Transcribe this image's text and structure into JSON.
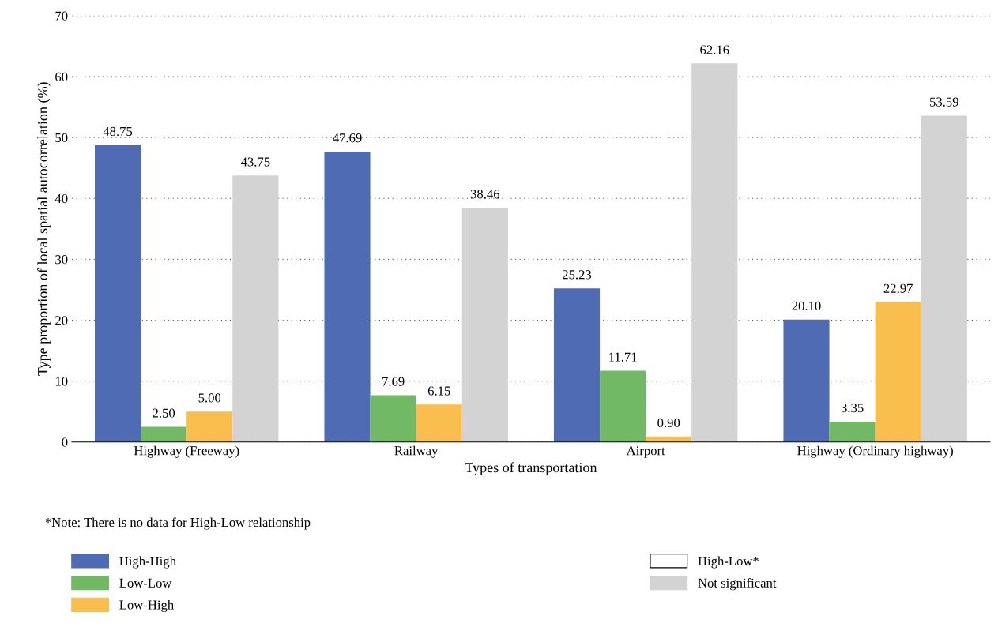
{
  "chart_data": {
    "type": "bar",
    "xlabel": "Types of transportation",
    "ylabel": "Type proportion of local spatial autocorrelation (%)",
    "categories": [
      "Highway (Freeway)",
      "Railway",
      "Airport",
      "Highway (Ordinary highway)"
    ],
    "series": [
      {
        "name": "High-High",
        "color": "#4f6bb3",
        "values": [
          48.75,
          47.69,
          25.23,
          20.1
        ],
        "value_labels": [
          "48.75",
          "47.69",
          "25.23",
          "20.10"
        ]
      },
      {
        "name": "Low-Low",
        "color": "#72b966",
        "values": [
          2.5,
          7.69,
          11.71,
          3.35
        ],
        "value_labels": [
          "2.50",
          "7.69",
          "11.71",
          "3.35"
        ]
      },
      {
        "name": "Low-High",
        "color": "#f9be4e",
        "values": [
          5.0,
          6.15,
          0.9,
          22.97
        ],
        "value_labels": [
          "5.00",
          "6.15",
          "0.90",
          "22.97"
        ]
      },
      {
        "name": "High-Low*",
        "color": "#ffffff",
        "values": [
          null,
          null,
          null,
          null
        ]
      },
      {
        "name": "Not significant",
        "color": "#d3d3d3",
        "values": [
          43.75,
          38.46,
          62.16,
          53.59
        ],
        "value_labels": [
          "43.75",
          "38.46",
          "62.16",
          "53.59"
        ]
      }
    ],
    "ylim": [
      0,
      70
    ],
    "yticks": [
      0,
      10,
      20,
      30,
      40,
      50,
      60,
      70
    ],
    "grid": "y",
    "legend": "bottom",
    "annotations": [
      "*Note: There is no data for High-Low relationship"
    ]
  }
}
